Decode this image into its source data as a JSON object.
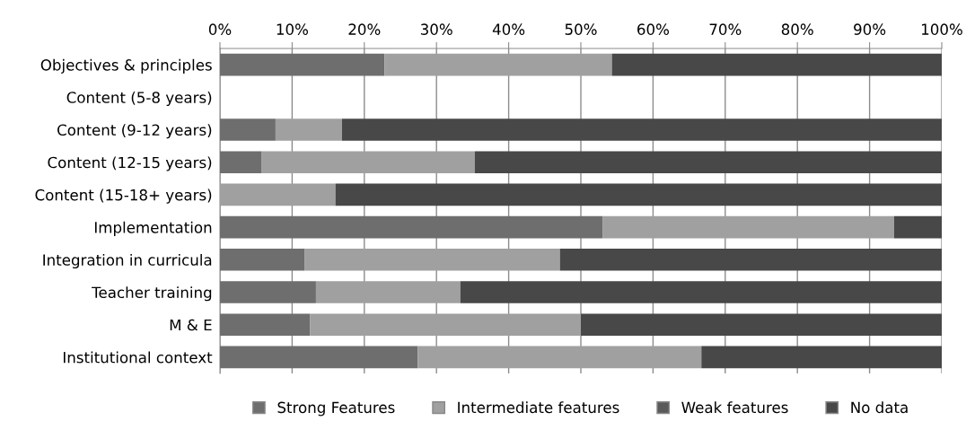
{
  "chart_data": {
    "type": "bar",
    "orientation": "horizontal",
    "stacked": true,
    "categories": [
      "Objectives & principles",
      "Content (5-8 years)",
      "Content (9-12 years)",
      "Content (12-15 years)",
      "Content (15-18+ years)",
      "Implementation",
      "Integration in curricula",
      "Teacher training",
      "M & E",
      "Institutional context"
    ],
    "series": [
      {
        "name": "Strong Features",
        "color": "#6e6e6e",
        "values": [
          22.8,
          0,
          7.7,
          5.8,
          0,
          53.0,
          11.7,
          13.3,
          12.5,
          27.4
        ]
      },
      {
        "name": "Intermediate features",
        "color": "#a0a0a0",
        "values": [
          31.5,
          0,
          9.2,
          29.5,
          16.0,
          40.4,
          35.4,
          20.0,
          37.5,
          39.3
        ]
      },
      {
        "name": "Weak features",
        "color": "#5a5a5a",
        "values": [
          0,
          0,
          0,
          0,
          0,
          0,
          0,
          0,
          0,
          0
        ]
      },
      {
        "name": "No data",
        "color": "#484848",
        "values": [
          45.7,
          0,
          83.1,
          64.7,
          84.0,
          6.6,
          52.9,
          66.7,
          50.0,
          33.3
        ]
      }
    ],
    "xlim": [
      0,
      100
    ],
    "xticks": [
      {
        "value": 0,
        "label": "0%"
      },
      {
        "value": 10,
        "label": "10%"
      },
      {
        "value": 20,
        "label": "20%"
      },
      {
        "value": 30,
        "label": "30%"
      },
      {
        "value": 40,
        "label": "40%"
      },
      {
        "value": 50,
        "label": "50%"
      },
      {
        "value": 60,
        "label": "60%"
      },
      {
        "value": 70,
        "label": "70%"
      },
      {
        "value": 80,
        "label": "80%"
      },
      {
        "value": 90,
        "label": "90%"
      },
      {
        "value": 100,
        "label": "100%"
      }
    ],
    "grid": "x",
    "legend": "bottom"
  }
}
